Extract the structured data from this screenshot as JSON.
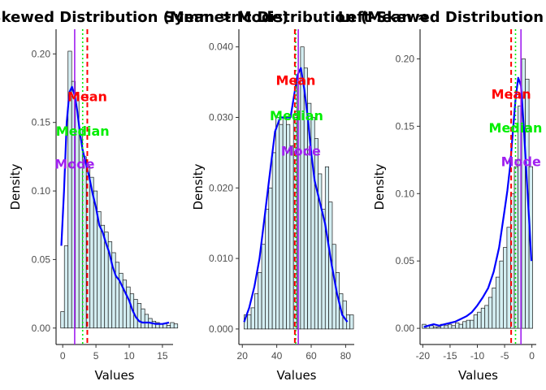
{
  "colors": {
    "bar_fill": "#d4eef2",
    "bar_stroke": "#1a1a1a",
    "density": "#0000ff",
    "mean": "#ff0000",
    "median": "#00ee00",
    "mode": "#a020f0"
  },
  "chart_data": [
    {
      "type": "bar",
      "title": "Right-Skewed Distribution (Mean > Mode)",
      "xlabel": "Values",
      "ylabel": "Density",
      "xlim": [
        -1,
        16.6
      ],
      "ylim": [
        -0.012,
        0.218
      ],
      "xticks": [
        0,
        5,
        10,
        15
      ],
      "yticks": [
        0.0,
        0.05,
        0.1,
        0.15,
        0.2
      ],
      "ytick_labels": [
        "0.00",
        "0.05",
        "0.10",
        "0.15",
        "0.20"
      ],
      "bin_start": -0.3,
      "bin_width": 0.55,
      "histogram": [
        0.012,
        0.06,
        0.202,
        0.18,
        0.17,
        0.145,
        0.125,
        0.118,
        0.11,
        0.1,
        0.085,
        0.075,
        0.07,
        0.063,
        0.055,
        0.048,
        0.04,
        0.035,
        0.03,
        0.025,
        0.021,
        0.018,
        0.014,
        0.01,
        0.007,
        0.005,
        0.004,
        0.003,
        0.003,
        0.002,
        0.004,
        0.003
      ],
      "density": {
        "x": [
          -0.2,
          0.2,
          0.6,
          1.0,
          1.4,
          1.8,
          2.2,
          2.6,
          3.0,
          3.5,
          4.0,
          4.5,
          5.0,
          5.5,
          6.0,
          6.5,
          7.0,
          7.5,
          8.0,
          8.5,
          9.0,
          9.5,
          10.0,
          10.5,
          11.0,
          11.5,
          12.0,
          13.0,
          14.0,
          15.0,
          16.0
        ],
        "y": [
          0.06,
          0.1,
          0.15,
          0.172,
          0.176,
          0.17,
          0.158,
          0.142,
          0.13,
          0.12,
          0.11,
          0.098,
          0.088,
          0.075,
          0.07,
          0.062,
          0.055,
          0.045,
          0.038,
          0.035,
          0.03,
          0.025,
          0.02,
          0.013,
          0.008,
          0.005,
          0.004,
          0.004,
          0.003,
          0.003,
          0.004
        ]
      },
      "mean": 3.7,
      "median": 3.0,
      "mode": 1.8,
      "labels": [
        {
          "text": "Mean",
          "x": 3.7,
          "y": 0.169,
          "color": "mean"
        },
        {
          "text": "Median",
          "x": 3.0,
          "y": 0.144,
          "color": "median"
        },
        {
          "text": "Mode",
          "x": 1.8,
          "y": 0.12,
          "color": "mode"
        }
      ]
    },
    {
      "type": "bar",
      "title": "Symmetric Distribution (Mean ≈",
      "xlabel": "Values",
      "ylabel": "Density",
      "xlim": [
        18,
        85
      ],
      "ylim": [
        -0.0022,
        0.0425
      ],
      "xticks": [
        20,
        40,
        60,
        80
      ],
      "yticks": [
        0.0,
        0.01,
        0.02,
        0.03,
        0.04
      ],
      "ytick_labels": [
        "0.000",
        "0.010",
        "0.020",
        "0.030",
        "0.040"
      ],
      "bin_start": 21,
      "bin_width": 2.05,
      "histogram": [
        0.002,
        0.002,
        0.003,
        0.005,
        0.008,
        0.012,
        0.017,
        0.02,
        0.025,
        0.03,
        0.029,
        0.03,
        0.029,
        0.026,
        0.03,
        0.035,
        0.04,
        0.037,
        0.032,
        0.03,
        0.027,
        0.022,
        0.017,
        0.023,
        0.018,
        0.012,
        0.008,
        0.005,
        0.004,
        0.002,
        0.002
      ],
      "density": {
        "x": [
          21,
          24,
          27,
          30,
          33,
          36,
          39,
          42,
          45,
          48,
          50,
          52,
          54,
          56,
          58,
          60,
          62,
          64,
          66,
          68,
          70,
          72,
          75,
          78,
          81
        ],
        "y": [
          0.001,
          0.003,
          0.006,
          0.01,
          0.016,
          0.022,
          0.028,
          0.03,
          0.03,
          0.03,
          0.033,
          0.036,
          0.037,
          0.034,
          0.03,
          0.025,
          0.021,
          0.019,
          0.017,
          0.015,
          0.012,
          0.009,
          0.005,
          0.002,
          0.001
        ]
      },
      "mean": 50.5,
      "median": 51.0,
      "mode": 52.5,
      "labels": [
        {
          "text": "Mean",
          "x": 51,
          "y": 0.0353,
          "color": "mean"
        },
        {
          "text": "Median",
          "x": 51.5,
          "y": 0.0303,
          "color": "median"
        },
        {
          "text": "Mode",
          "x": 54,
          "y": 0.0253,
          "color": "mode"
        }
      ]
    },
    {
      "type": "bar",
      "title": "Left-Skewed Distribution (Mode >",
      "xlabel": "Values",
      "ylabel": "Density",
      "xlim": [
        -20.5,
        0.8
      ],
      "ylim": [
        -0.012,
        0.222
      ],
      "xticks": [
        -20,
        -15,
        -10,
        -5,
        0
      ],
      "yticks": [
        0.0,
        0.05,
        0.1,
        0.15,
        0.2
      ],
      "ytick_labels": [
        "0.00",
        "0.05",
        "0.10",
        "0.15",
        "0.20"
      ],
      "bin_start": -20.1,
      "bin_width": 0.675,
      "histogram": [
        0.003,
        0.002,
        0.002,
        0.001,
        0.001,
        0.003,
        0.002,
        0.003,
        0.002,
        0.004,
        0.003,
        0.005,
        0.006,
        0.006,
        0.01,
        0.012,
        0.015,
        0.017,
        0.023,
        0.03,
        0.038,
        0.05,
        0.06,
        0.075,
        0.1,
        0.12,
        0.165,
        0.2,
        0.185,
        0.12
      ],
      "density": {
        "x": [
          -19.8,
          -19,
          -18,
          -17,
          -16,
          -15,
          -14,
          -13,
          -12,
          -11,
          -10,
          -9,
          -8,
          -7,
          -6,
          -5,
          -4.5,
          -4,
          -3.5,
          -3,
          -2.5,
          -2,
          -1.5,
          -1,
          -0.5,
          -0.1
        ],
        "y": [
          0.001,
          0.002,
          0.003,
          0.002,
          0.003,
          0.004,
          0.005,
          0.007,
          0.009,
          0.012,
          0.017,
          0.023,
          0.03,
          0.042,
          0.06,
          0.088,
          0.102,
          0.12,
          0.145,
          0.17,
          0.186,
          0.18,
          0.15,
          0.115,
          0.08,
          0.05
        ]
      },
      "mean": -3.8,
      "median": -3.0,
      "mode": -2.0,
      "labels": [
        {
          "text": "Mean",
          "x": -3.8,
          "y": 0.174,
          "color": "mean"
        },
        {
          "text": "Median",
          "x": -3.0,
          "y": 0.149,
          "color": "median"
        },
        {
          "text": "Mode",
          "x": -2.0,
          "y": 0.124,
          "color": "mode"
        }
      ]
    }
  ]
}
